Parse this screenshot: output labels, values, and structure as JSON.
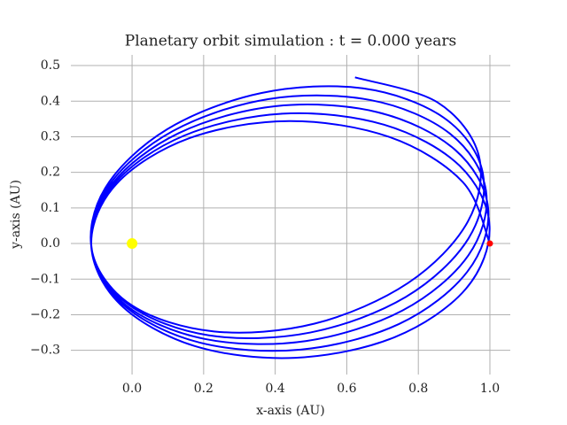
{
  "chart_data": {
    "type": "line",
    "title": "Planetary orbit simulation : t = 0.000 years",
    "x_label": "x-axis (AU)",
    "y_label": "y-axis (AU)",
    "xlim": [
      -0.171,
      1.057
    ],
    "ylim": [
      -0.368,
      0.53
    ],
    "xticks": [
      {
        "value": 0,
        "label": "0.0"
      },
      {
        "value": 0.2,
        "label": "0.2"
      },
      {
        "value": 0.4,
        "label": "0.4"
      },
      {
        "value": 0.6,
        "label": "0.6"
      },
      {
        "value": 0.8,
        "label": "0.8"
      },
      {
        "value": 1,
        "label": "1.0"
      }
    ],
    "yticks": [
      {
        "value": -0.3,
        "label": "−0.3"
      },
      {
        "value": -0.2,
        "label": "−0.2"
      },
      {
        "value": -0.1,
        "label": "−0.1"
      },
      {
        "value": 0,
        "label": "0.0"
      },
      {
        "value": 0.1,
        "label": "0.1"
      },
      {
        "value": 0.2,
        "label": "0.2"
      },
      {
        "value": 0.3,
        "label": "0.3"
      },
      {
        "value": 0.4,
        "label": "0.4"
      },
      {
        "value": 0.5,
        "label": "0.5"
      }
    ],
    "grid": true,
    "series": [
      {
        "color": "#0000ff",
        "mode": "line",
        "x": [
          1.0,
          0.924,
          0.72,
          0.439,
          0.16,
          -0.043,
          -0.114,
          -0.034,
          0.175,
          0.456,
          0.734,
          0.933,
          0.999,
          0.915,
          0.704,
          0.421,
          0.145,
          -0.051,
          -0.114,
          -0.026,
          0.188,
          0.471,
          0.746,
          0.937,
          0.995,
          0.902,
          0.686,
          0.402,
          0.13,
          -0.059,
          -0.113,
          -0.017,
          0.203,
          0.485,
          0.756,
          0.94,
          0.989,
          0.888,
          0.667,
          0.382,
          0.114,
          -0.067,
          -0.112,
          -0.008,
          0.215,
          0.498,
          0.765,
          0.94,
          0.98,
          0.872,
          0.645,
          0.362,
          0.098,
          -0.075,
          -0.111,
          0.0,
          0.229,
          0.51,
          0.771,
          0.938,
          0.969,
          0.853,
          0.623
        ],
        "y": [
          0,
          0.173,
          0.299,
          0.344,
          0.296,
          0.168,
          -0.003,
          -0.17,
          -0.288,
          -0.321,
          -0.263,
          -0.127,
          0.05,
          0.219,
          0.334,
          0.365,
          0.303,
          0.166,
          -0.009,
          -0.171,
          -0.278,
          -0.298,
          -0.226,
          -0.079,
          0.1,
          0.264,
          0.369,
          0.386,
          0.31,
          0.163,
          -0.014,
          -0.173,
          -0.268,
          -0.274,
          -0.188,
          -0.033,
          0.149,
          0.309,
          0.403,
          0.406,
          0.316,
          0.16,
          -0.02,
          -0.173,
          -0.258,
          -0.25,
          -0.15,
          0.014,
          0.199,
          0.353,
          0.436,
          0.423,
          0.321,
          0.156,
          -0.025,
          -0.174,
          -0.247,
          -0.225,
          -0.111,
          0.061,
          0.247,
          0.397,
          0.467
        ]
      },
      {
        "color": "#ffff00",
        "mode": "point",
        "x": [
          0
        ],
        "y": [
          0
        ]
      },
      {
        "color": "#ff0000",
        "mode": "point",
        "x": [
          1.0
        ],
        "y": [
          0
        ]
      }
    ]
  }
}
